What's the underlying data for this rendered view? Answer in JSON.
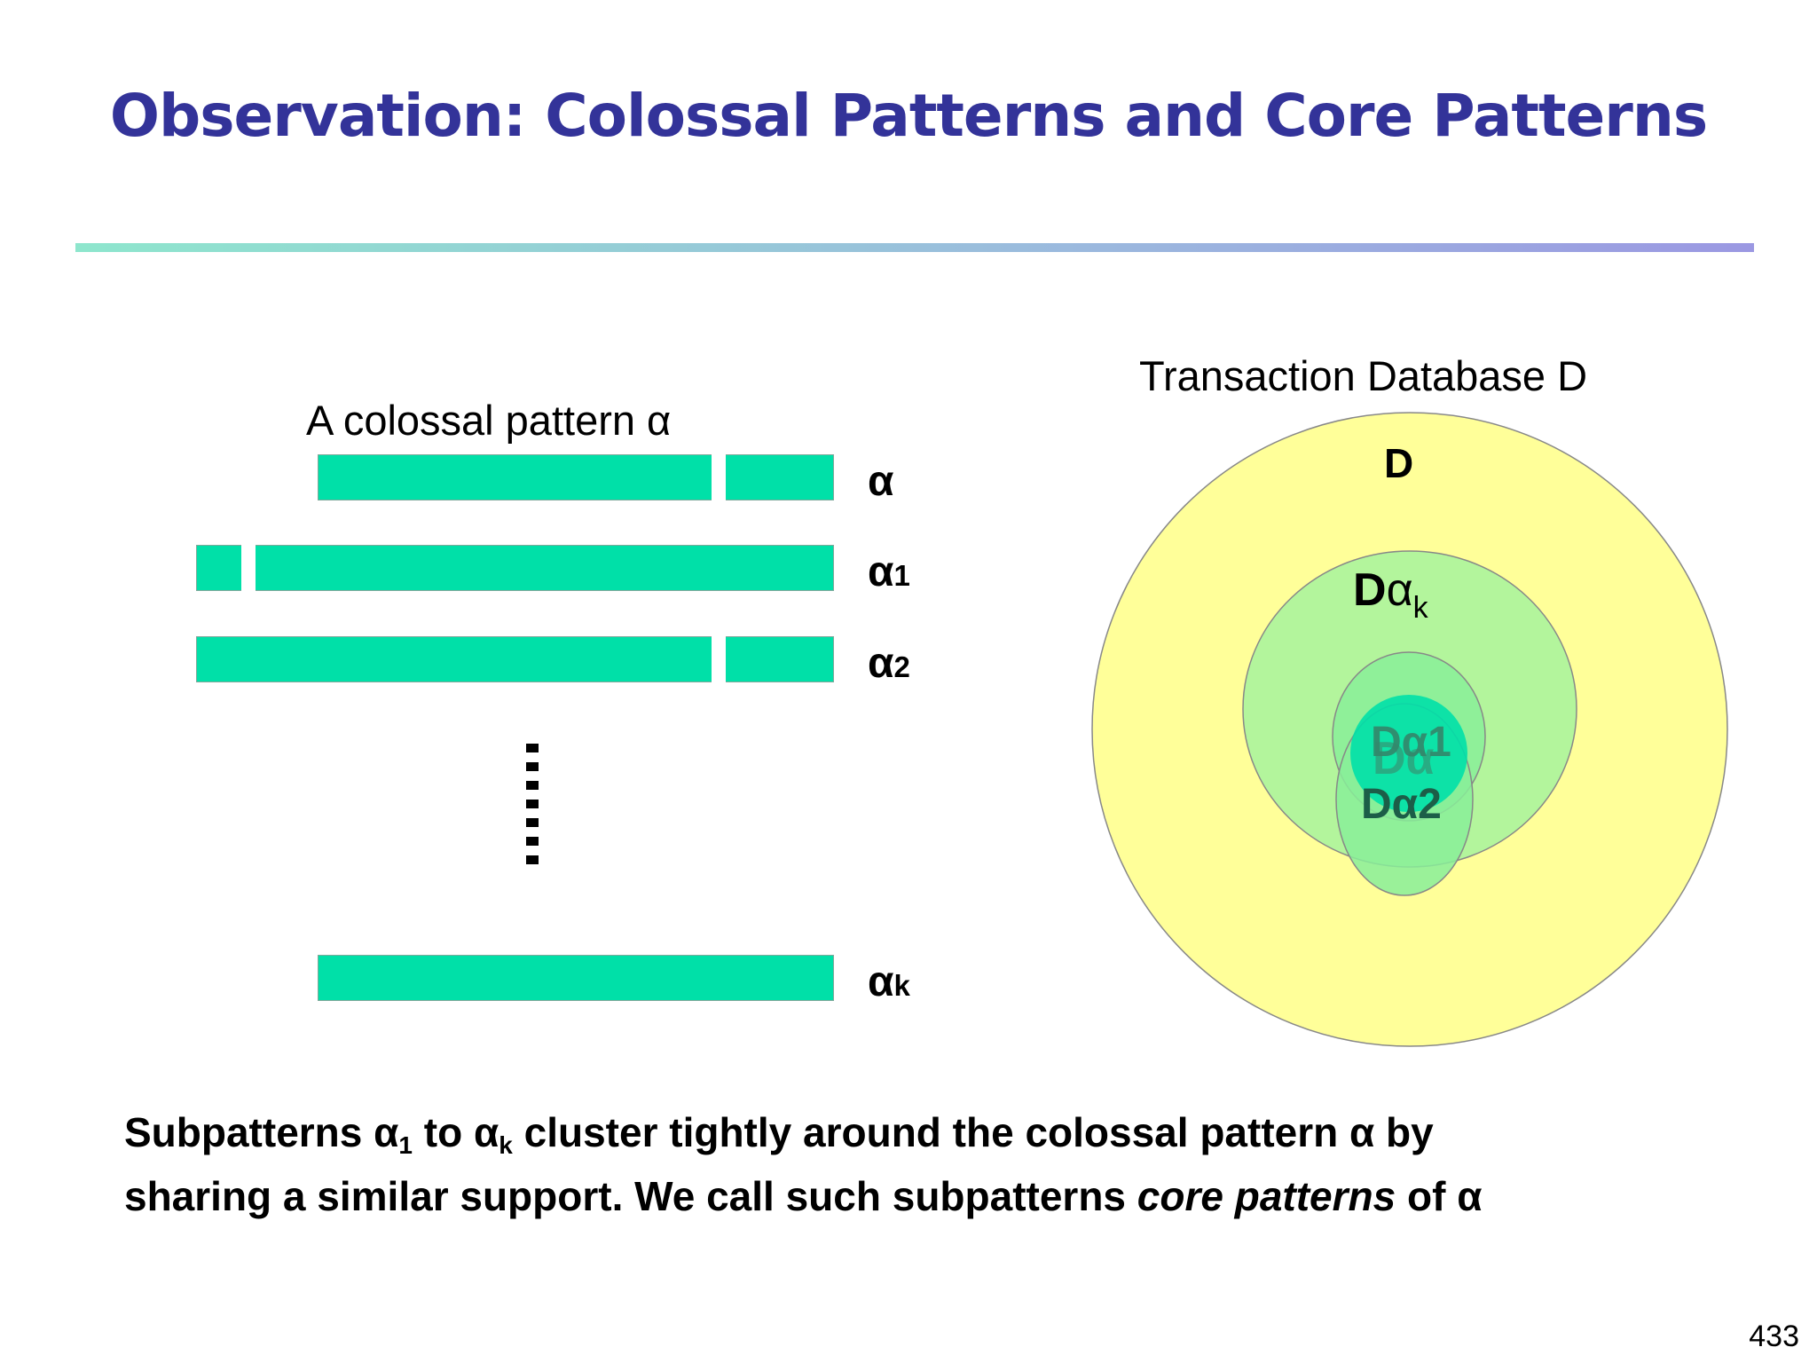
{
  "slide": {
    "title": "Observation: Colossal Patterns and Core Patterns",
    "page_number": "433"
  },
  "left_diagram": {
    "heading": "A colossal pattern α",
    "bars": [
      {
        "name": "alpha",
        "label": "α",
        "subscript": ""
      },
      {
        "name": "alpha-1",
        "label": "α",
        "subscript": "1"
      },
      {
        "name": "alpha-2",
        "label": "α",
        "subscript": "2"
      },
      {
        "name": "alpha-k",
        "label": "α",
        "subscript": "k"
      }
    ],
    "bar_color": "#00e0a8"
  },
  "right_diagram": {
    "heading": "Transaction Database D",
    "outer_label": "D",
    "dak_label": "D",
    "dak_alpha": "α",
    "dak_sub": "k",
    "da1_label": "Dα1",
    "da_label": "Dα",
    "da2_label": "Dα2",
    "colors": {
      "outer": "#ffff99",
      "dak": "#b3f59c",
      "inner": "#88ee99",
      "core": "#00e0a8"
    }
  },
  "footer": {
    "line1_a": "Subpatterns α",
    "line1_sub1": "1",
    "line1_b": " to α",
    "line1_subk": "k",
    "line1_c": " cluster tightly around the colossal pattern α by",
    "line2_a": "sharing a similar support.  We call such subpatterns ",
    "line2_italic": "core patterns",
    "line2_b": " of α"
  }
}
